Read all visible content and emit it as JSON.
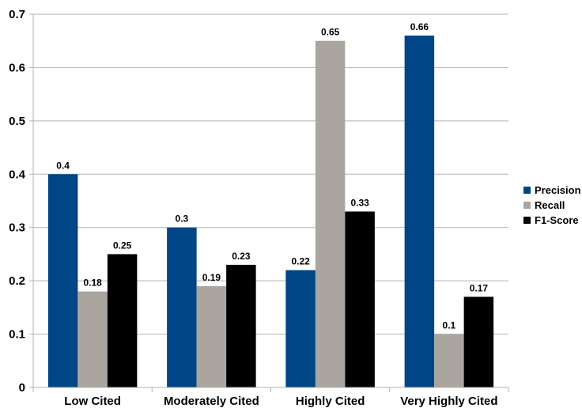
{
  "chart_data": {
    "type": "bar",
    "categories": [
      "Low Cited",
      "Moderately Cited",
      "Highly Cited",
      "Very Highly Cited"
    ],
    "series": [
      {
        "name": "Precision",
        "color": "#004586",
        "values": [
          0.4,
          0.3,
          0.22,
          0.66
        ],
        "labels": [
          "0.4",
          "0.3",
          "0.22",
          "0.66"
        ]
      },
      {
        "name": "Recall",
        "color": "#aba59f",
        "values": [
          0.18,
          0.19,
          0.65,
          0.1
        ],
        "labels": [
          "0.18",
          "0.19",
          "0.65",
          "0.1"
        ]
      },
      {
        "name": "F1-Score",
        "color": "#000000",
        "values": [
          0.25,
          0.23,
          0.33,
          0.17
        ],
        "labels": [
          "0.25",
          "0.23",
          "0.33",
          "0.17"
        ]
      }
    ],
    "ylim": [
      0,
      0.7
    ],
    "yticks": [
      "0",
      "0.1",
      "0.2",
      "0.3",
      "0.4",
      "0.5",
      "0.6",
      "0.7"
    ],
    "grid": true,
    "legend_position": "right"
  }
}
